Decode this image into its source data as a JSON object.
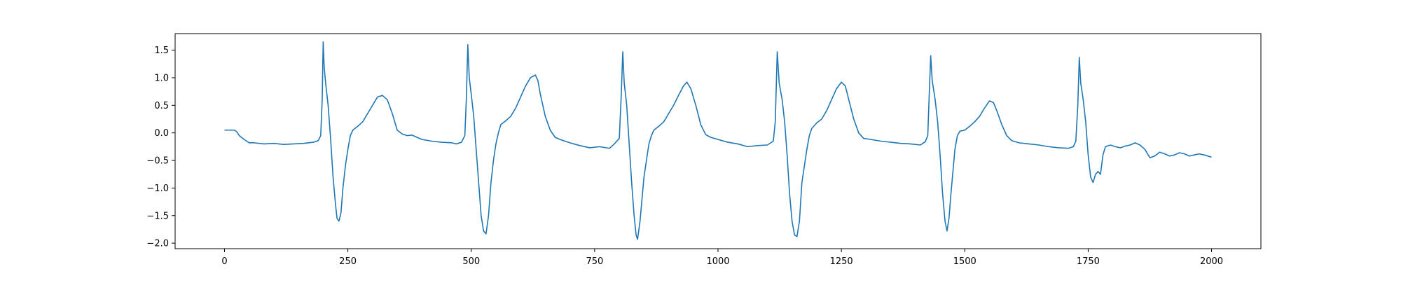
{
  "chart_data": {
    "type": "line",
    "title": "",
    "xlabel": "",
    "ylabel": "",
    "xlim": [
      -100,
      2100
    ],
    "ylim": [
      -2.1,
      1.8
    ],
    "x_ticks": [
      0,
      250,
      500,
      750,
      1000,
      1250,
      1500,
      1750,
      2000
    ],
    "y_ticks": [
      1.5,
      1.0,
      0.5,
      0.0,
      -0.5,
      -1.0,
      -1.5,
      -2.0
    ],
    "x_tick_labels": [
      "0",
      "250",
      "500",
      "750",
      "1000",
      "1250",
      "1500",
      "1750",
      "2000"
    ],
    "y_tick_labels": [
      "1.5",
      "1.0",
      "0.5",
      "0.0",
      "−0.5",
      "−1.0",
      "−1.5",
      "−2.0"
    ],
    "grid": false,
    "legend": "none",
    "series": [
      {
        "color": "#1f77b4",
        "points": [
          [
            0,
            0.05
          ],
          [
            10,
            0.05
          ],
          [
            20,
            0.05
          ],
          [
            25,
            0.02
          ],
          [
            30,
            -0.05
          ],
          [
            40,
            -0.12
          ],
          [
            50,
            -0.18
          ],
          [
            60,
            -0.18
          ],
          [
            80,
            -0.2
          ],
          [
            100,
            -0.19
          ],
          [
            120,
            -0.21
          ],
          [
            140,
            -0.2
          ],
          [
            160,
            -0.19
          ],
          [
            180,
            -0.17
          ],
          [
            190,
            -0.14
          ],
          [
            195,
            -0.05
          ],
          [
            198,
            0.6
          ],
          [
            200,
            1.65
          ],
          [
            202,
            1.2
          ],
          [
            205,
            0.9
          ],
          [
            210,
            0.5
          ],
          [
            215,
            -0.1
          ],
          [
            220,
            -0.8
          ],
          [
            225,
            -1.3
          ],
          [
            228,
            -1.55
          ],
          [
            232,
            -1.6
          ],
          [
            236,
            -1.45
          ],
          [
            240,
            -1.0
          ],
          [
            245,
            -0.6
          ],
          [
            250,
            -0.3
          ],
          [
            255,
            -0.05
          ],
          [
            260,
            0.05
          ],
          [
            270,
            0.12
          ],
          [
            280,
            0.2
          ],
          [
            290,
            0.35
          ],
          [
            300,
            0.5
          ],
          [
            310,
            0.65
          ],
          [
            320,
            0.68
          ],
          [
            330,
            0.6
          ],
          [
            340,
            0.35
          ],
          [
            350,
            0.05
          ],
          [
            360,
            -0.02
          ],
          [
            370,
            -0.05
          ],
          [
            380,
            -0.04
          ],
          [
            390,
            -0.08
          ],
          [
            400,
            -0.12
          ],
          [
            420,
            -0.15
          ],
          [
            440,
            -0.17
          ],
          [
            460,
            -0.18
          ],
          [
            470,
            -0.2
          ],
          [
            480,
            -0.17
          ],
          [
            487,
            -0.05
          ],
          [
            490,
            0.6
          ],
          [
            493,
            1.6
          ],
          [
            496,
            1.0
          ],
          [
            500,
            0.7
          ],
          [
            505,
            0.3
          ],
          [
            510,
            -0.3
          ],
          [
            515,
            -0.9
          ],
          [
            520,
            -1.5
          ],
          [
            525,
            -1.78
          ],
          [
            530,
            -1.83
          ],
          [
            535,
            -1.5
          ],
          [
            540,
            -0.9
          ],
          [
            545,
            -0.5
          ],
          [
            550,
            -0.2
          ],
          [
            555,
            0.0
          ],
          [
            560,
            0.15
          ],
          [
            570,
            0.22
          ],
          [
            580,
            0.3
          ],
          [
            590,
            0.45
          ],
          [
            600,
            0.65
          ],
          [
            610,
            0.85
          ],
          [
            620,
            1.0
          ],
          [
            630,
            1.05
          ],
          [
            635,
            0.95
          ],
          [
            640,
            0.7
          ],
          [
            650,
            0.3
          ],
          [
            660,
            0.05
          ],
          [
            670,
            -0.08
          ],
          [
            680,
            -0.12
          ],
          [
            700,
            -0.18
          ],
          [
            720,
            -0.23
          ],
          [
            740,
            -0.27
          ],
          [
            760,
            -0.25
          ],
          [
            780,
            -0.28
          ],
          [
            790,
            -0.2
          ],
          [
            800,
            -0.1
          ],
          [
            804,
            0.7
          ],
          [
            807,
            1.47
          ],
          [
            810,
            0.9
          ],
          [
            815,
            0.5
          ],
          [
            820,
            -0.2
          ],
          [
            825,
            -0.9
          ],
          [
            830,
            -1.5
          ],
          [
            834,
            -1.85
          ],
          [
            837,
            -1.93
          ],
          [
            842,
            -1.6
          ],
          [
            847,
            -1.1
          ],
          [
            850,
            -0.8
          ],
          [
            855,
            -0.5
          ],
          [
            860,
            -0.2
          ],
          [
            865,
            -0.05
          ],
          [
            870,
            0.05
          ],
          [
            880,
            0.12
          ],
          [
            890,
            0.2
          ],
          [
            900,
            0.35
          ],
          [
            910,
            0.5
          ],
          [
            920,
            0.68
          ],
          [
            930,
            0.85
          ],
          [
            937,
            0.92
          ],
          [
            945,
            0.8
          ],
          [
            955,
            0.5
          ],
          [
            965,
            0.15
          ],
          [
            975,
            -0.03
          ],
          [
            985,
            -0.08
          ],
          [
            1000,
            -0.12
          ],
          [
            1020,
            -0.17
          ],
          [
            1040,
            -0.2
          ],
          [
            1060,
            -0.25
          ],
          [
            1080,
            -0.23
          ],
          [
            1100,
            -0.22
          ],
          [
            1112,
            -0.15
          ],
          [
            1116,
            0.2
          ],
          [
            1120,
            1.47
          ],
          [
            1124,
            0.9
          ],
          [
            1130,
            0.6
          ],
          [
            1135,
            0.2
          ],
          [
            1140,
            -0.4
          ],
          [
            1145,
            -1.1
          ],
          [
            1150,
            -1.6
          ],
          [
            1155,
            -1.85
          ],
          [
            1160,
            -1.88
          ],
          [
            1165,
            -1.6
          ],
          [
            1170,
            -0.9
          ],
          [
            1175,
            -0.6
          ],
          [
            1180,
            -0.3
          ],
          [
            1185,
            -0.05
          ],
          [
            1190,
            0.08
          ],
          [
            1200,
            0.18
          ],
          [
            1210,
            0.25
          ],
          [
            1220,
            0.4
          ],
          [
            1230,
            0.6
          ],
          [
            1240,
            0.8
          ],
          [
            1250,
            0.92
          ],
          [
            1258,
            0.85
          ],
          [
            1265,
            0.6
          ],
          [
            1275,
            0.25
          ],
          [
            1285,
            0.0
          ],
          [
            1295,
            -0.1
          ],
          [
            1310,
            -0.12
          ],
          [
            1330,
            -0.15
          ],
          [
            1350,
            -0.17
          ],
          [
            1370,
            -0.19
          ],
          [
            1390,
            -0.2
          ],
          [
            1410,
            -0.22
          ],
          [
            1420,
            -0.16
          ],
          [
            1425,
            -0.05
          ],
          [
            1428,
            0.7
          ],
          [
            1431,
            1.4
          ],
          [
            1434,
            0.95
          ],
          [
            1440,
            0.6
          ],
          [
            1445,
            0.2
          ],
          [
            1450,
            -0.4
          ],
          [
            1455,
            -1.1
          ],
          [
            1460,
            -1.6
          ],
          [
            1464,
            -1.78
          ],
          [
            1468,
            -1.55
          ],
          [
            1472,
            -1.1
          ],
          [
            1476,
            -0.7
          ],
          [
            1480,
            -0.3
          ],
          [
            1485,
            -0.05
          ],
          [
            1490,
            0.03
          ],
          [
            1500,
            0.05
          ],
          [
            1510,
            0.12
          ],
          [
            1520,
            0.2
          ],
          [
            1530,
            0.3
          ],
          [
            1540,
            0.45
          ],
          [
            1550,
            0.58
          ],
          [
            1558,
            0.55
          ],
          [
            1565,
            0.4
          ],
          [
            1575,
            0.15
          ],
          [
            1585,
            -0.05
          ],
          [
            1595,
            -0.14
          ],
          [
            1610,
            -0.18
          ],
          [
            1630,
            -0.2
          ],
          [
            1650,
            -0.22
          ],
          [
            1670,
            -0.25
          ],
          [
            1690,
            -0.27
          ],
          [
            1710,
            -0.28
          ],
          [
            1720,
            -0.25
          ],
          [
            1725,
            -0.15
          ],
          [
            1729,
            0.5
          ],
          [
            1732,
            1.37
          ],
          [
            1735,
            0.9
          ],
          [
            1740,
            0.6
          ],
          [
            1745,
            0.2
          ],
          [
            1750,
            -0.4
          ],
          [
            1755,
            -0.8
          ],
          [
            1760,
            -0.9
          ],
          [
            1765,
            -0.75
          ],
          [
            1770,
            -0.7
          ],
          [
            1775,
            -0.75
          ],
          [
            1780,
            -0.4
          ],
          [
            1785,
            -0.25
          ],
          [
            1795,
            -0.22
          ],
          [
            1805,
            -0.25
          ],
          [
            1815,
            -0.27
          ],
          [
            1825,
            -0.24
          ],
          [
            1835,
            -0.22
          ],
          [
            1845,
            -0.18
          ],
          [
            1855,
            -0.22
          ],
          [
            1865,
            -0.3
          ],
          [
            1875,
            -0.45
          ],
          [
            1885,
            -0.42
          ],
          [
            1895,
            -0.35
          ],
          [
            1905,
            -0.38
          ],
          [
            1915,
            -0.42
          ],
          [
            1925,
            -0.4
          ],
          [
            1935,
            -0.36
          ],
          [
            1945,
            -0.38
          ],
          [
            1955,
            -0.42
          ],
          [
            1965,
            -0.4
          ],
          [
            1975,
            -0.38
          ],
          [
            1985,
            -0.4
          ],
          [
            2000,
            -0.44
          ]
        ]
      }
    ]
  }
}
